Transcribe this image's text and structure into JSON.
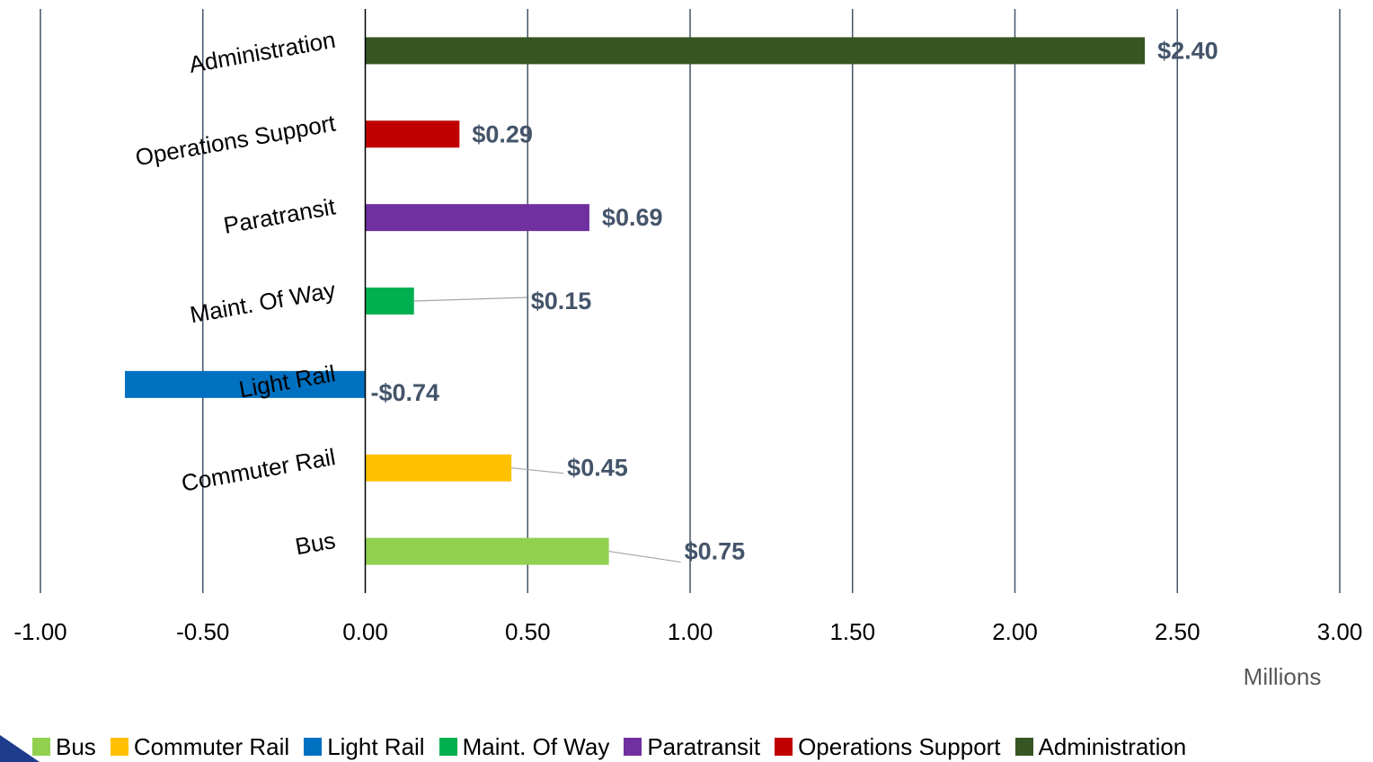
{
  "chart_data": {
    "type": "bar",
    "orientation": "horizontal",
    "categories": [
      "Bus",
      "Commuter Rail",
      "Light Rail",
      "Maint. Of Way",
      "Paratransit",
      "Operations Support",
      "Administration"
    ],
    "values": [
      0.75,
      0.45,
      -0.74,
      0.15,
      0.69,
      0.29,
      2.4
    ],
    "data_labels": [
      "$0.75",
      "$0.45",
      "-$0.74",
      "$0.15",
      "$0.69",
      "$0.29",
      "$2.40"
    ],
    "colors": [
      "#92d050",
      "#ffc000",
      "#0070c0",
      "#00b050",
      "#7030a0",
      "#c00000",
      "#375623"
    ],
    "x_ticks": [
      "-1.00",
      "-0.50",
      "0.00",
      "0.50",
      "1.00",
      "1.50",
      "2.00",
      "2.50",
      "3.00"
    ],
    "xlim": [
      -1.0,
      3.0
    ],
    "units_label": "Millions",
    "grid": "vertical",
    "legend_position": "bottom",
    "title": "",
    "xlabel": "",
    "ylabel": ""
  }
}
